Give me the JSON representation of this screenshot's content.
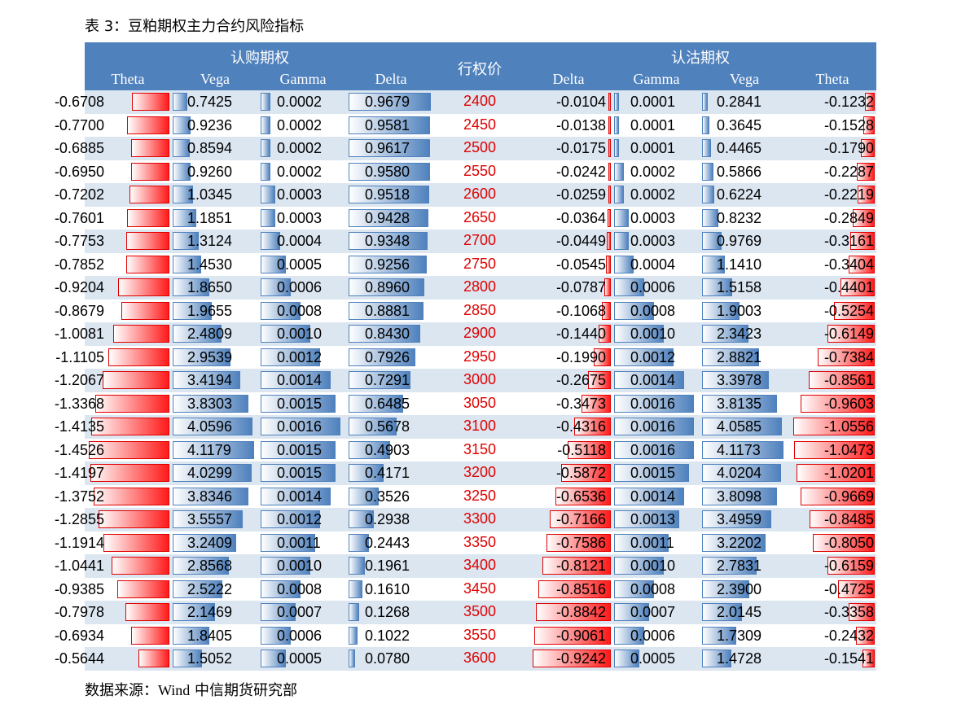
{
  "caption": "表 3：豆粕期权主力合约风险指标",
  "source_prefix": "数据来源：",
  "source_en": "Wind",
  "source_suffix": "  中信期货研究部",
  "header": {
    "call_group": "认购期权",
    "put_group": "认沽期权",
    "strike": "行权价",
    "call_cols": [
      "Theta",
      "Vega",
      "Gamma",
      "Delta"
    ],
    "put_cols": [
      "Delta",
      "Gamma",
      "Vega",
      "Theta"
    ]
  },
  "colors": {
    "header_bg": "#4f81bd",
    "alt_row": "#dce6f1",
    "red_bar": "#ff1a1a",
    "blue_bar": "#4f81bd",
    "strike_text": "#e00000"
  },
  "chart_data": {
    "type": "table",
    "columns": [
      "认购Theta",
      "认购Vega",
      "认购Gamma",
      "认购Delta",
      "行权价",
      "认沽Delta",
      "认沽Gamma",
      "认沽Vega",
      "认沽Theta"
    ],
    "rows": [
      [
        "-0.6708",
        "0.7425",
        "0.0002",
        "0.9679",
        "2400",
        "-0.0104",
        "0.0001",
        "0.2841",
        "-0.1232"
      ],
      [
        "-0.7700",
        "0.9236",
        "0.0002",
        "0.9581",
        "2450",
        "-0.0138",
        "0.0001",
        "0.3645",
        "-0.1528"
      ],
      [
        "-0.6885",
        "0.8594",
        "0.0002",
        "0.9617",
        "2500",
        "-0.0175",
        "0.0001",
        "0.4465",
        "-0.1790"
      ],
      [
        "-0.6950",
        "0.9260",
        "0.0002",
        "0.9580",
        "2550",
        "-0.0242",
        "0.0002",
        "0.5866",
        "-0.2287"
      ],
      [
        "-0.7202",
        "1.0345",
        "0.0003",
        "0.9518",
        "2600",
        "-0.0259",
        "0.0002",
        "0.6224",
        "-0.2219"
      ],
      [
        "-0.7601",
        "1.1851",
        "0.0003",
        "0.9428",
        "2650",
        "-0.0364",
        "0.0003",
        "0.8232",
        "-0.2849"
      ],
      [
        "-0.7753",
        "1.3124",
        "0.0004",
        "0.9348",
        "2700",
        "-0.0449",
        "0.0003",
        "0.9769",
        "-0.3161"
      ],
      [
        "-0.7852",
        "1.4530",
        "0.0005",
        "0.9256",
        "2750",
        "-0.0545",
        "0.0004",
        "1.1410",
        "-0.3404"
      ],
      [
        "-0.9204",
        "1.8650",
        "0.0006",
        "0.8960",
        "2800",
        "-0.0787",
        "0.0006",
        "1.5158",
        "-0.4401"
      ],
      [
        "-0.8679",
        "1.9655",
        "0.0008",
        "0.8881",
        "2850",
        "-0.1068",
        "0.0008",
        "1.9003",
        "-0.5254"
      ],
      [
        "-1.0081",
        "2.4809",
        "0.0010",
        "0.8430",
        "2900",
        "-0.1440",
        "0.0010",
        "2.3423",
        "-0.6149"
      ],
      [
        "-1.1105",
        "2.9539",
        "0.0012",
        "0.7926",
        "2950",
        "-0.1990",
        "0.0012",
        "2.8821",
        "-0.7384"
      ],
      [
        "-1.2067",
        "3.4194",
        "0.0014",
        "0.7291",
        "3000",
        "-0.2675",
        "0.0014",
        "3.3978",
        "-0.8561"
      ],
      [
        "-1.3368",
        "3.8303",
        "0.0015",
        "0.6485",
        "3050",
        "-0.3473",
        "0.0016",
        "3.8135",
        "-0.9603"
      ],
      [
        "-1.4135",
        "4.0596",
        "0.0016",
        "0.5678",
        "3100",
        "-0.4316",
        "0.0016",
        "4.0585",
        "-1.0556"
      ],
      [
        "-1.4526",
        "4.1179",
        "0.0015",
        "0.4903",
        "3150",
        "-0.5118",
        "0.0016",
        "4.1173",
        "-1.0473"
      ],
      [
        "-1.4197",
        "4.0299",
        "0.0015",
        "0.4171",
        "3200",
        "-0.5872",
        "0.0015",
        "4.0204",
        "-1.0201"
      ],
      [
        "-1.3752",
        "3.8346",
        "0.0014",
        "0.3526",
        "3250",
        "-0.6536",
        "0.0014",
        "3.8098",
        "-0.9669"
      ],
      [
        "-1.2855",
        "3.5557",
        "0.0012",
        "0.2938",
        "3300",
        "-0.7166",
        "0.0013",
        "3.4959",
        "-0.8485"
      ],
      [
        "-1.1914",
        "3.2409",
        "0.0011",
        "0.2443",
        "3350",
        "-0.7586",
        "0.0011",
        "3.2202",
        "-0.8050"
      ],
      [
        "-1.0441",
        "2.8568",
        "0.0010",
        "0.1961",
        "3400",
        "-0.8121",
        "0.0010",
        "2.7831",
        "-0.6159"
      ],
      [
        "-0.9385",
        "2.5222",
        "0.0008",
        "0.1610",
        "3450",
        "-0.8516",
        "0.0008",
        "2.3900",
        "-0.4725"
      ],
      [
        "-0.7978",
        "2.1469",
        "0.0007",
        "0.1268",
        "3500",
        "-0.8842",
        "0.0007",
        "2.0145",
        "-0.3358"
      ],
      [
        "-0.6934",
        "1.8405",
        "0.0006",
        "0.1022",
        "3550",
        "-0.9061",
        "0.0006",
        "1.7309",
        "-0.2432"
      ],
      [
        "-0.5644",
        "1.5052",
        "0.0005",
        "0.0780",
        "3600",
        "-0.9242",
        "0.0005",
        "1.4728",
        "-0.1541"
      ]
    ]
  }
}
